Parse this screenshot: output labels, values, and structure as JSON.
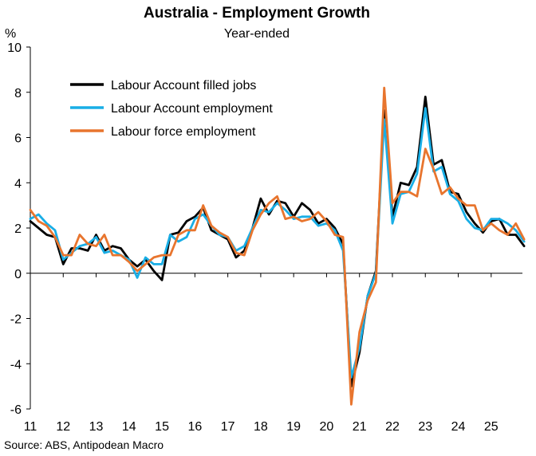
{
  "chart_data": {
    "type": "line",
    "title": "Australia - Employment Growth",
    "subtitle": "Year-ended",
    "ylabel": "%",
    "ylim": [
      -6,
      10
    ],
    "yticks": [
      -6,
      -4,
      -2,
      0,
      2,
      4,
      6,
      8,
      10
    ],
    "xlim": [
      2011,
      2025.95
    ],
    "xticks": [
      {
        "x": 2011,
        "label": "11"
      },
      {
        "x": 2012,
        "label": "12"
      },
      {
        "x": 2013,
        "label": "13"
      },
      {
        "x": 2014,
        "label": "14"
      },
      {
        "x": 2015,
        "label": "15"
      },
      {
        "x": 2016,
        "label": "16"
      },
      {
        "x": 2017,
        "label": "17"
      },
      {
        "x": 2018,
        "label": "18"
      },
      {
        "x": 2019,
        "label": "19"
      },
      {
        "x": 2020,
        "label": "20"
      },
      {
        "x": 2021,
        "label": "21"
      },
      {
        "x": 2022,
        "label": "22"
      },
      {
        "x": 2023,
        "label": "23"
      },
      {
        "x": 2024,
        "label": "24"
      },
      {
        "x": 2025,
        "label": "25"
      }
    ],
    "x_start": 2011.0,
    "x_step": 0.25,
    "grid": false,
    "legend_position": "top-left",
    "series": [
      {
        "name": "Labour Account filled jobs",
        "color": "#000000",
        "values": [
          2.3,
          2.0,
          1.7,
          1.6,
          0.4,
          1.1,
          1.1,
          1.0,
          1.7,
          1.0,
          1.2,
          1.1,
          0.6,
          0.3,
          0.6,
          0.1,
          -0.3,
          1.7,
          1.8,
          2.3,
          2.5,
          2.9,
          1.9,
          1.7,
          1.5,
          0.7,
          1.0,
          2.0,
          3.3,
          2.6,
          3.2,
          3.1,
          2.5,
          3.1,
          2.8,
          2.2,
          2.4,
          2.0,
          1.3,
          -5.0,
          -3.5,
          -1.0,
          0.1,
          7.2,
          2.5,
          4.0,
          3.9,
          4.7,
          7.8,
          4.8,
          5.0,
          3.6,
          3.5,
          2.7,
          2.2,
          1.8,
          2.3,
          2.4,
          1.7,
          1.7,
          1.2
        ]
      },
      {
        "name": "Labour Account employment",
        "color": "#19aee6",
        "values": [
          2.4,
          2.6,
          2.2,
          1.9,
          0.6,
          0.9,
          1.2,
          1.3,
          1.6,
          0.9,
          1.0,
          0.8,
          0.6,
          -0.2,
          0.7,
          0.4,
          0.4,
          1.7,
          1.4,
          1.6,
          2.4,
          2.6,
          2.1,
          1.7,
          1.6,
          1.0,
          1.2,
          2.0,
          2.8,
          2.7,
          3.1,
          2.8,
          2.4,
          2.5,
          2.5,
          2.1,
          2.2,
          1.9,
          1.0,
          -4.6,
          -3.3,
          -1.0,
          0.0,
          6.8,
          2.2,
          3.5,
          3.6,
          4.4,
          7.3,
          4.5,
          4.7,
          3.5,
          3.2,
          2.4,
          2.0,
          1.9,
          2.4,
          2.4,
          2.2,
          1.9,
          1.4
        ]
      },
      {
        "name": "Labour force employment",
        "color": "#e8752e",
        "values": [
          2.8,
          2.3,
          2.1,
          1.6,
          0.8,
          0.8,
          1.7,
          1.3,
          1.2,
          1.7,
          0.8,
          0.8,
          0.5,
          0.1,
          0.4,
          0.7,
          0.8,
          0.8,
          1.7,
          1.9,
          1.9,
          3.0,
          2.1,
          1.8,
          1.6,
          0.9,
          0.8,
          1.9,
          2.6,
          3.1,
          3.4,
          2.4,
          2.5,
          2.3,
          2.4,
          2.7,
          2.3,
          1.7,
          1.6,
          -5.8,
          -2.6,
          -1.2,
          -0.4,
          8.2,
          3.1,
          3.6,
          3.6,
          3.4,
          5.5,
          4.6,
          3.5,
          3.8,
          3.3,
          3.0,
          3.0,
          1.9,
          2.2,
          1.9,
          1.7,
          2.2,
          1.5
        ]
      }
    ],
    "source": "Source: ABS, Antipodean Macro"
  }
}
